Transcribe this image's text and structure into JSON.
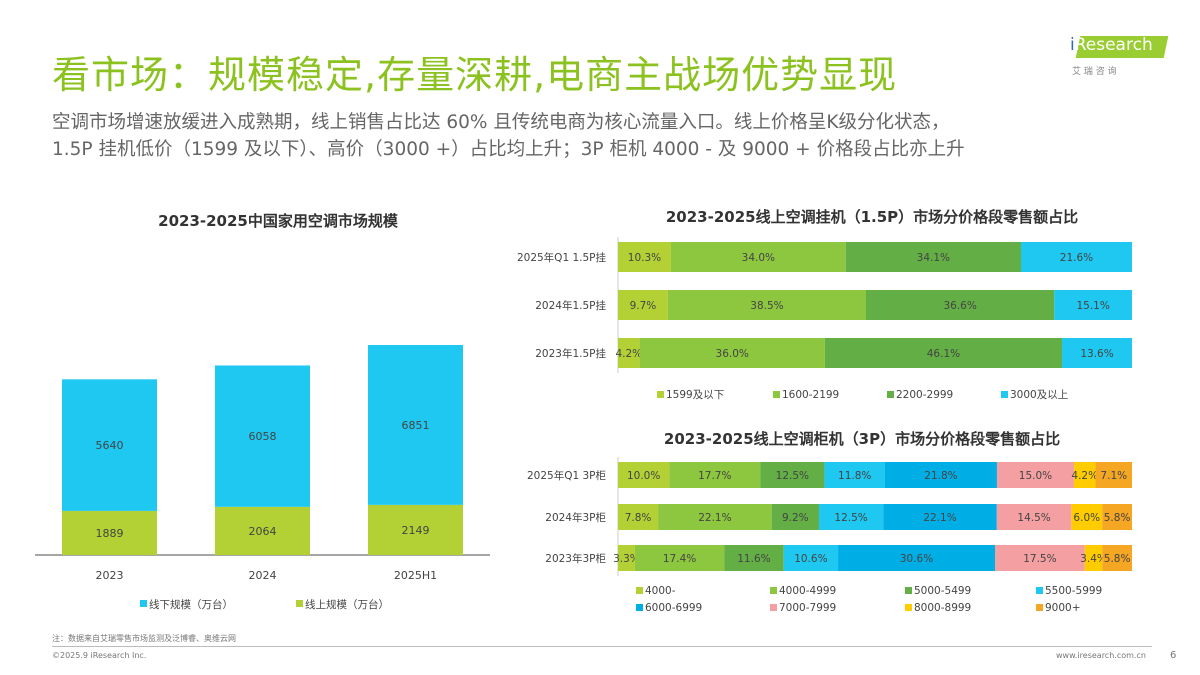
{
  "header": {
    "title": "看市场：规模稳定,存量深耕,电商主战场优势显现",
    "subtitle_lines": [
      "空调市场增速放缓进入成熟期，线上销售占比达 60% 且传统电商为核心流量入口。线上价格呈K级分化状态，",
      "1.5P 挂机低价（1599 及以下）、高价（3000 +）占比均上升；3P 柜机 4000 - 及 9000 + 价格段占比亦上升"
    ],
    "logo_text": "iResearch",
    "logo_sub": "艾 瑞 咨 询"
  },
  "chart_data": [
    {
      "type": "bar",
      "stacked": true,
      "title": "2023-2025中国家用空调市场规模",
      "categories": [
        "2023",
        "2024",
        "2025H1"
      ],
      "series": [
        {
          "name": "线上规模（万台）",
          "values": [
            1889,
            2064,
            2149
          ],
          "color": "#b3d135"
        },
        {
          "name": "线下规模（万台）",
          "values": [
            5640,
            6058,
            6851
          ],
          "color": "#1ec8f0"
        }
      ],
      "legend": "bottom",
      "grid": false
    },
    {
      "type": "bar",
      "orientation": "horizontal",
      "stacked": true,
      "percent": true,
      "title": "2023-2025线上空调挂机（1.5P）市场分价格段零售额占比",
      "categories": [
        "2025年Q1 1.5P挂",
        "2024年1.5P挂",
        "2023年1.5P挂"
      ],
      "series": [
        {
          "name": "1599及以下",
          "values": [
            10.3,
            9.7,
            4.2
          ],
          "color": "#b3d135"
        },
        {
          "name": "1600-2199",
          "values": [
            34.0,
            38.5,
            36.0
          ],
          "color": "#8dc63f"
        },
        {
          "name": "2200-2999",
          "values": [
            34.1,
            36.6,
            46.1
          ],
          "color": "#63ae45"
        },
        {
          "name": "3000及以上",
          "values": [
            21.6,
            15.1,
            13.6
          ],
          "color": "#1ec8f0"
        }
      ],
      "legend": "bottom",
      "grid": false
    },
    {
      "type": "bar",
      "orientation": "horizontal",
      "stacked": true,
      "percent": true,
      "title": "2023-2025线上空调柜机（3P）市场分价格段零售额占比",
      "categories": [
        "2025年Q1 3P柜",
        "2024年3P柜",
        "2023年3P柜"
      ],
      "series": [
        {
          "name": "4000-",
          "values": [
            10.0,
            7.8,
            3.3
          ],
          "color": "#b3d135"
        },
        {
          "name": "4000-4999",
          "values": [
            17.7,
            22.1,
            17.4
          ],
          "color": "#8dc63f"
        },
        {
          "name": "5000-5499",
          "values": [
            12.5,
            9.2,
            11.6
          ],
          "color": "#63ae45"
        },
        {
          "name": "5500-5999",
          "values": [
            11.8,
            12.5,
            10.6
          ],
          "color": "#1ec8f0"
        },
        {
          "name": "6000-6999",
          "values": [
            21.8,
            22.1,
            30.6
          ],
          "color": "#00aee6"
        },
        {
          "name": "7000-7999",
          "values": [
            15.0,
            14.5,
            17.5
          ],
          "color": "#f4a0a2"
        },
        {
          "name": "8000-8999",
          "values": [
            4.2,
            6.0,
            3.4
          ],
          "color": "#ffcc00"
        },
        {
          "name": "9000+",
          "values": [
            7.1,
            5.8,
            5.8
          ],
          "color": "#f5a623"
        }
      ],
      "legend": "bottom",
      "grid": false
    }
  ],
  "footer": {
    "note": "注：数据来自艾瑞零售市场监测及泛博睿、奥维云网",
    "copyright": "©2025.9 iResearch Inc.",
    "url": "www.iresearch.com.cn",
    "page": "6"
  }
}
